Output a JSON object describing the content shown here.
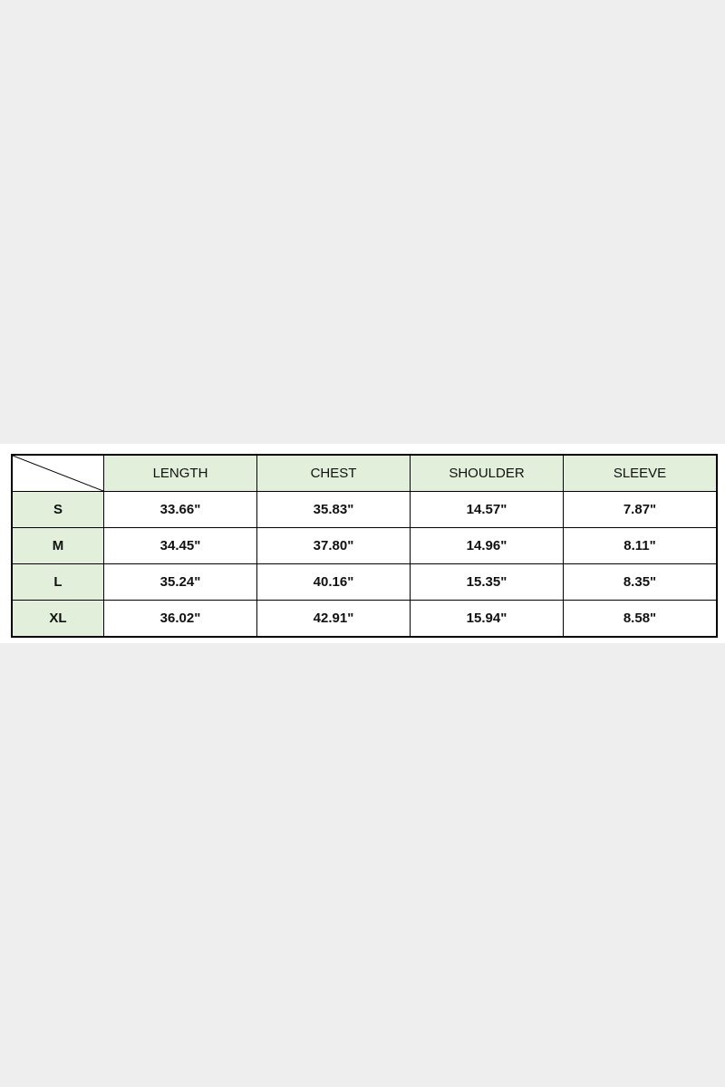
{
  "size_chart": {
    "columns": [
      "LENGTH",
      "CHEST",
      "SHOULDER",
      "SLEEVE"
    ],
    "rows": [
      {
        "size": "S",
        "values": [
          "33.66\"",
          "35.83\"",
          "14.57\"",
          "7.87\""
        ]
      },
      {
        "size": "M",
        "values": [
          "34.45\"",
          "37.80\"",
          "14.96\"",
          "8.11\""
        ]
      },
      {
        "size": "L",
        "values": [
          "35.24\"",
          "40.16\"",
          "15.35\"",
          "8.35\""
        ]
      },
      {
        "size": "XL",
        "values": [
          "36.02\"",
          "42.91\"",
          "15.94\"",
          "8.58\""
        ]
      }
    ],
    "header_color": "#e2efda"
  }
}
